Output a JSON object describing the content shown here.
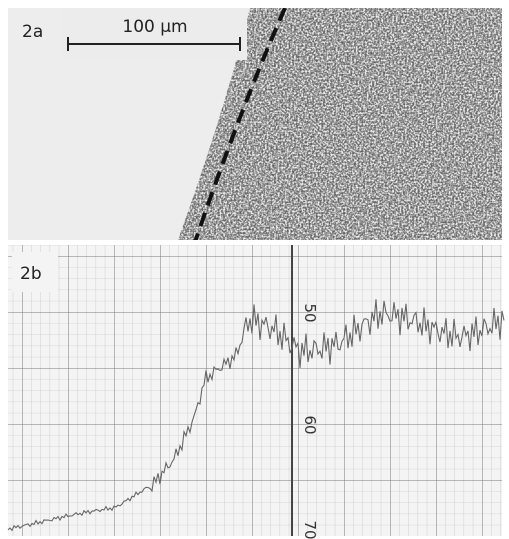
{
  "panel_a": {
    "label": "2a",
    "scale_bar": "100 µm"
  },
  "panel_b": {
    "label": "2b",
    "scale_labels": [
      "50",
      "60",
      "70"
    ]
  }
}
